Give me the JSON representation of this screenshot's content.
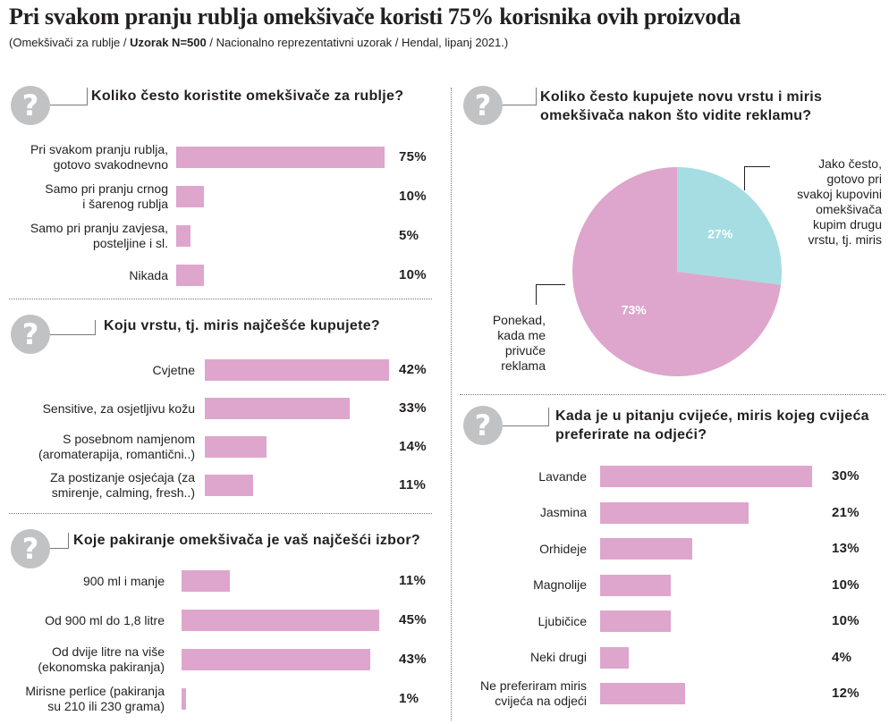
{
  "title": "Pri svakom pranju rublja omekšivače koristi 75% korisnika ovih proizvoda",
  "subtitle": {
    "part1": "(Omekšivači za rublje / ",
    "part2": "Uzorak N=500",
    "part3": " / Nacionalno reprezentativni uzorak / Hendal, lipanj 2021.)"
  },
  "colors": {
    "bar": "#dea6cc",
    "pie_a": "#a5dde3",
    "pie_b": "#dea6cc",
    "icon": "#c1c2c4"
  },
  "icon_glyph": "?",
  "chart_data": [
    {
      "type": "bar",
      "question": "Koliko često koristite omekšivače za rublje?",
      "categories": [
        "Pri svakom pranju rublja,\ngotovo svakodnevno",
        "Samo pri pranju crnog\ni šarenog rublja",
        "Samo pri pranju zavjesa,\nposteljine i sl.",
        "Nikada"
      ],
      "values": [
        75,
        10,
        5,
        10
      ],
      "labels": [
        "75%",
        "10%",
        "5%",
        "10%"
      ]
    },
    {
      "type": "bar",
      "question": "Koju vrstu, tj. miris najčešće kupujete?",
      "categories": [
        "Cvjetne",
        "Sensitive, za osjetljivu kožu",
        "S posebnom namjenom\n(aromaterapija, romantični..)",
        "Za postizanje osjećaja (za\nsmirenje, calming, fresh..)"
      ],
      "values": [
        42,
        33,
        14,
        11
      ],
      "labels": [
        "42%",
        "33%",
        "14%",
        "11%"
      ]
    },
    {
      "type": "bar",
      "question": "Koje pakiranje omekšivača je vaš najčešći izbor?",
      "categories": [
        "900 ml i manje",
        "Od 900 ml do 1,8 litre",
        "Od dvije litre na više\n(ekonomska pakiranja)",
        "Mirisne perlice (pakiranja\nsu 210 ili 230 grama)"
      ],
      "values": [
        11,
        45,
        43,
        1
      ],
      "labels": [
        "11%",
        "45%",
        "43%",
        "1%"
      ]
    },
    {
      "type": "pie",
      "question": "Koliko često kupujete novu vrstu i miris omekšivača nakon što vidite reklamu?",
      "slices": [
        {
          "value": 27,
          "label": "27%",
          "legend": "Jako često,\ngotovo pri\nsvakoj kupovini\nomekšivača\nkupim drugu\nvrstu, tj. miris"
        },
        {
          "value": 73,
          "label": "73%",
          "legend": "Ponekad,\nkada me\nprivuče\nreklama"
        }
      ]
    },
    {
      "type": "bar",
      "question": "Kada je u pitanju cvijeće, miris kojeg cvijeća preferirate na odjeći?",
      "categories": [
        "Lavande",
        "Jasmina",
        "Orhideje",
        "Magnolije",
        "Ljubičice",
        "Neki drugi",
        "Ne preferiram miris\ncvijeća na odjeći"
      ],
      "values": [
        30,
        21,
        13,
        10,
        10,
        4,
        12
      ],
      "labels": [
        "30%",
        "21%",
        "13%",
        "10%",
        "10%",
        "4%",
        "12%"
      ]
    }
  ]
}
